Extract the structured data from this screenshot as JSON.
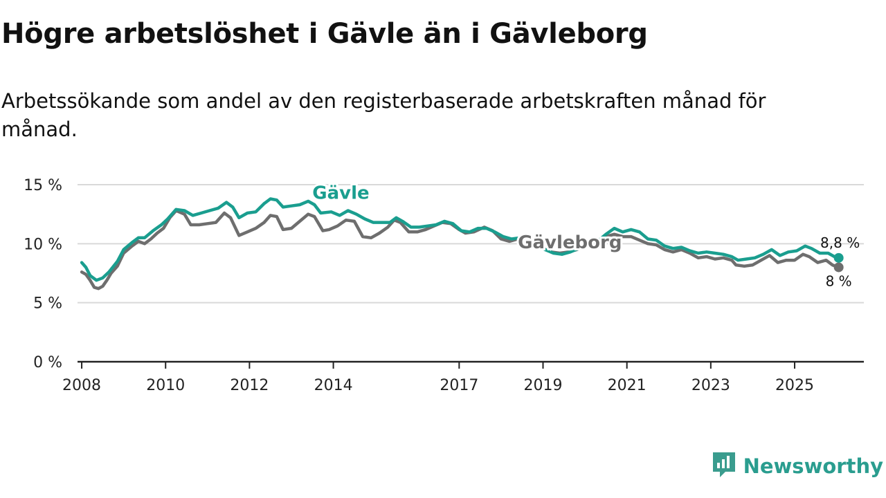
{
  "title": "Högre arbetslöshet i Gävle än i Gävleborg",
  "subtitle": "Arbetssökande som andel av den registerbaserade arbetskraften månad för månad.",
  "brand": {
    "name": "Newsworthy",
    "icon": "newsworthy-logo-icon",
    "color": "#3a9c8e"
  },
  "colors": {
    "gavle": "#1a9e8f",
    "gavleborg": "#6e6e6e",
    "grid": "#d9d9d9",
    "axis": "#222222"
  },
  "chart_data": {
    "type": "line",
    "title": "Högre arbetslöshet i Gävle än i Gävleborg",
    "xlabel": "",
    "ylabel": "",
    "ylim": [
      0,
      15
    ],
    "xlim": [
      2007.9,
      2026.65
    ],
    "y_ticks": [
      0,
      5,
      10,
      15
    ],
    "y_tick_labels": [
      "0 %",
      "5 %",
      "10 %",
      "15 %"
    ],
    "x_ticks": [
      2008,
      2010,
      2012,
      2014,
      2017,
      2019,
      2021,
      2023,
      2025
    ],
    "x_tick_labels": [
      "2008",
      "2010",
      "2012",
      "2014",
      "2017",
      "2019",
      "2021",
      "2023",
      "2025"
    ],
    "grid": true,
    "series": [
      {
        "name": "Gävleborg",
        "color": "#6e6e6e",
        "end_label": "8 %",
        "points": [
          [
            2008.0,
            7.6
          ],
          [
            2008.1,
            7.4
          ],
          [
            2008.2,
            6.9
          ],
          [
            2008.3,
            6.3
          ],
          [
            2008.4,
            6.2
          ],
          [
            2008.5,
            6.4
          ],
          [
            2008.6,
            6.9
          ],
          [
            2008.7,
            7.5
          ],
          [
            2008.85,
            8.1
          ],
          [
            2009.0,
            9.2
          ],
          [
            2009.2,
            9.8
          ],
          [
            2009.35,
            10.2
          ],
          [
            2009.5,
            10.0
          ],
          [
            2009.65,
            10.4
          ],
          [
            2009.8,
            10.9
          ],
          [
            2009.95,
            11.3
          ],
          [
            2010.1,
            12.2
          ],
          [
            2010.25,
            12.8
          ],
          [
            2010.45,
            12.5
          ],
          [
            2010.6,
            11.6
          ],
          [
            2010.8,
            11.6
          ],
          [
            2011.0,
            11.7
          ],
          [
            2011.2,
            11.8
          ],
          [
            2011.4,
            12.6
          ],
          [
            2011.55,
            12.2
          ],
          [
            2011.75,
            10.7
          ],
          [
            2011.95,
            11.0
          ],
          [
            2012.15,
            11.3
          ],
          [
            2012.35,
            11.8
          ],
          [
            2012.5,
            12.4
          ],
          [
            2012.65,
            12.3
          ],
          [
            2012.8,
            11.2
          ],
          [
            2013.0,
            11.3
          ],
          [
            2013.2,
            11.9
          ],
          [
            2013.4,
            12.5
          ],
          [
            2013.55,
            12.3
          ],
          [
            2013.75,
            11.1
          ],
          [
            2013.9,
            11.2
          ],
          [
            2014.1,
            11.5
          ],
          [
            2014.3,
            12.0
          ],
          [
            2014.5,
            11.9
          ],
          [
            2014.7,
            10.6
          ],
          [
            2014.9,
            10.5
          ],
          [
            2015.1,
            10.9
          ],
          [
            2015.3,
            11.4
          ],
          [
            2015.45,
            12.0
          ],
          [
            2015.6,
            11.8
          ],
          [
            2015.8,
            11.0
          ],
          [
            2016.0,
            11.0
          ],
          [
            2016.2,
            11.2
          ],
          [
            2016.4,
            11.5
          ],
          [
            2016.6,
            11.8
          ],
          [
            2016.8,
            11.7
          ],
          [
            2017.0,
            11.2
          ],
          [
            2017.15,
            10.9
          ],
          [
            2017.35,
            11.0
          ],
          [
            2017.6,
            11.4
          ],
          [
            2017.8,
            11.1
          ],
          [
            2018.0,
            10.4
          ],
          [
            2018.2,
            10.2
          ],
          [
            2018.4,
            10.4
          ],
          [
            2018.6,
            10.6
          ],
          [
            2018.8,
            10.3
          ],
          [
            2019.0,
            9.6
          ],
          [
            2019.2,
            9.3
          ],
          [
            2019.4,
            9.2
          ],
          [
            2019.6,
            9.3
          ],
          [
            2019.8,
            9.5
          ],
          [
            2020.0,
            9.8
          ],
          [
            2020.25,
            10.2
          ],
          [
            2020.5,
            10.6
          ],
          [
            2020.7,
            10.8
          ],
          [
            2020.9,
            10.6
          ],
          [
            2021.1,
            10.6
          ],
          [
            2021.3,
            10.3
          ],
          [
            2021.5,
            10.0
          ],
          [
            2021.7,
            9.9
          ],
          [
            2021.9,
            9.5
          ],
          [
            2022.1,
            9.3
          ],
          [
            2022.3,
            9.5
          ],
          [
            2022.5,
            9.2
          ],
          [
            2022.7,
            8.8
          ],
          [
            2022.9,
            8.9
          ],
          [
            2023.1,
            8.7
          ],
          [
            2023.3,
            8.8
          ],
          [
            2023.5,
            8.6
          ],
          [
            2023.6,
            8.2
          ],
          [
            2023.8,
            8.1
          ],
          [
            2024.0,
            8.2
          ],
          [
            2024.2,
            8.6
          ],
          [
            2024.4,
            9.0
          ],
          [
            2024.6,
            8.4
          ],
          [
            2024.8,
            8.6
          ],
          [
            2025.0,
            8.6
          ],
          [
            2025.2,
            9.1
          ],
          [
            2025.35,
            8.9
          ],
          [
            2025.55,
            8.4
          ],
          [
            2025.75,
            8.6
          ],
          [
            2025.9,
            8.2
          ],
          [
            2026.05,
            8.0
          ]
        ]
      },
      {
        "name": "Gävle",
        "color": "#1a9e8f",
        "end_label": "8,8 %",
        "points": [
          [
            2008.0,
            8.4
          ],
          [
            2008.1,
            8.0
          ],
          [
            2008.2,
            7.3
          ],
          [
            2008.35,
            6.9
          ],
          [
            2008.5,
            7.1
          ],
          [
            2008.65,
            7.6
          ],
          [
            2008.85,
            8.5
          ],
          [
            2009.0,
            9.5
          ],
          [
            2009.2,
            10.1
          ],
          [
            2009.35,
            10.5
          ],
          [
            2009.5,
            10.5
          ],
          [
            2009.7,
            11.1
          ],
          [
            2009.9,
            11.6
          ],
          [
            2010.05,
            12.1
          ],
          [
            2010.25,
            12.9
          ],
          [
            2010.45,
            12.8
          ],
          [
            2010.65,
            12.4
          ],
          [
            2010.85,
            12.6
          ],
          [
            2011.05,
            12.8
          ],
          [
            2011.25,
            13.0
          ],
          [
            2011.45,
            13.5
          ],
          [
            2011.6,
            13.1
          ],
          [
            2011.75,
            12.2
          ],
          [
            2011.95,
            12.6
          ],
          [
            2012.15,
            12.7
          ],
          [
            2012.35,
            13.4
          ],
          [
            2012.5,
            13.8
          ],
          [
            2012.65,
            13.7
          ],
          [
            2012.8,
            13.1
          ],
          [
            2013.0,
            13.2
          ],
          [
            2013.2,
            13.3
          ],
          [
            2013.4,
            13.6
          ],
          [
            2013.55,
            13.3
          ],
          [
            2013.7,
            12.6
          ],
          [
            2013.95,
            12.7
          ],
          [
            2014.15,
            12.4
          ],
          [
            2014.35,
            12.8
          ],
          [
            2014.55,
            12.5
          ],
          [
            2014.75,
            12.1
          ],
          [
            2014.95,
            11.8
          ],
          [
            2015.15,
            11.8
          ],
          [
            2015.35,
            11.8
          ],
          [
            2015.5,
            12.2
          ],
          [
            2015.65,
            11.9
          ],
          [
            2015.85,
            11.4
          ],
          [
            2016.05,
            11.4
          ],
          [
            2016.25,
            11.5
          ],
          [
            2016.45,
            11.6
          ],
          [
            2016.65,
            11.9
          ],
          [
            2016.85,
            11.7
          ],
          [
            2017.05,
            11.1
          ],
          [
            2017.25,
            11.0
          ],
          [
            2017.45,
            11.3
          ],
          [
            2017.65,
            11.3
          ],
          [
            2017.85,
            11.0
          ],
          [
            2018.05,
            10.6
          ],
          [
            2018.25,
            10.4
          ],
          [
            2018.45,
            10.5
          ],
          [
            2018.65,
            10.5
          ],
          [
            2018.85,
            10.0
          ],
          [
            2019.05,
            9.5
          ],
          [
            2019.25,
            9.2
          ],
          [
            2019.45,
            9.1
          ],
          [
            2019.65,
            9.3
          ],
          [
            2019.85,
            9.6
          ],
          [
            2020.05,
            9.8
          ],
          [
            2020.3,
            10.2
          ],
          [
            2020.5,
            10.8
          ],
          [
            2020.7,
            11.3
          ],
          [
            2020.9,
            11.0
          ],
          [
            2021.1,
            11.2
          ],
          [
            2021.3,
            11.0
          ],
          [
            2021.5,
            10.4
          ],
          [
            2021.7,
            10.3
          ],
          [
            2021.9,
            9.8
          ],
          [
            2022.1,
            9.6
          ],
          [
            2022.3,
            9.7
          ],
          [
            2022.5,
            9.4
          ],
          [
            2022.7,
            9.2
          ],
          [
            2022.9,
            9.3
          ],
          [
            2023.1,
            9.2
          ],
          [
            2023.3,
            9.1
          ],
          [
            2023.5,
            8.9
          ],
          [
            2023.65,
            8.6
          ],
          [
            2023.85,
            8.7
          ],
          [
            2024.05,
            8.8
          ],
          [
            2024.25,
            9.1
          ],
          [
            2024.45,
            9.5
          ],
          [
            2024.65,
            9.0
          ],
          [
            2024.85,
            9.3
          ],
          [
            2025.05,
            9.4
          ],
          [
            2025.25,
            9.8
          ],
          [
            2025.4,
            9.6
          ],
          [
            2025.6,
            9.2
          ],
          [
            2025.8,
            9.2
          ],
          [
            2025.95,
            8.9
          ],
          [
            2026.05,
            8.8
          ]
        ]
      }
    ]
  }
}
